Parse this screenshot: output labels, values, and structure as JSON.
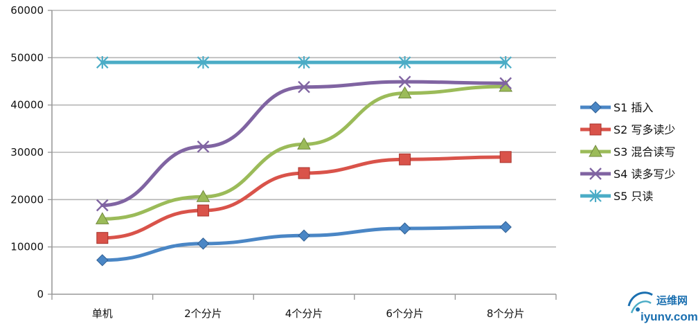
{
  "chart_data": {
    "type": "line",
    "categories": [
      "单机",
      "2个分片",
      "4个分片",
      "6个分片",
      "8个分片"
    ],
    "ylim": [
      0,
      60000
    ],
    "yticks": [
      0,
      10000,
      20000,
      30000,
      40000,
      50000,
      60000
    ],
    "grid": true,
    "legend_position": "right",
    "series": [
      {
        "name": "S1 插入",
        "color": "#4a86c5",
        "marker": "diamond",
        "values": [
          7200,
          10700,
          12400,
          13900,
          14200
        ]
      },
      {
        "name": "S2 写多读少",
        "color": "#d9534a",
        "marker": "square",
        "values": [
          11900,
          17700,
          25600,
          28500,
          29000
        ]
      },
      {
        "name": "S3 混合读写",
        "color": "#9bbb59",
        "marker": "triangle",
        "values": [
          15900,
          20600,
          31700,
          42500,
          43900
        ]
      },
      {
        "name": "S4 读多写少",
        "color": "#8064a2",
        "marker": "x",
        "values": [
          18800,
          31200,
          43800,
          44900,
          44600
        ]
      },
      {
        "name": "S5 只读",
        "color": "#4bacc6",
        "marker": "asterisk",
        "values": [
          49000,
          49000,
          49000,
          49000,
          49000
        ]
      }
    ]
  },
  "watermark": {
    "line1": "运维网",
    "line2": "iyunv.com",
    "color": "#1a6fb0"
  }
}
